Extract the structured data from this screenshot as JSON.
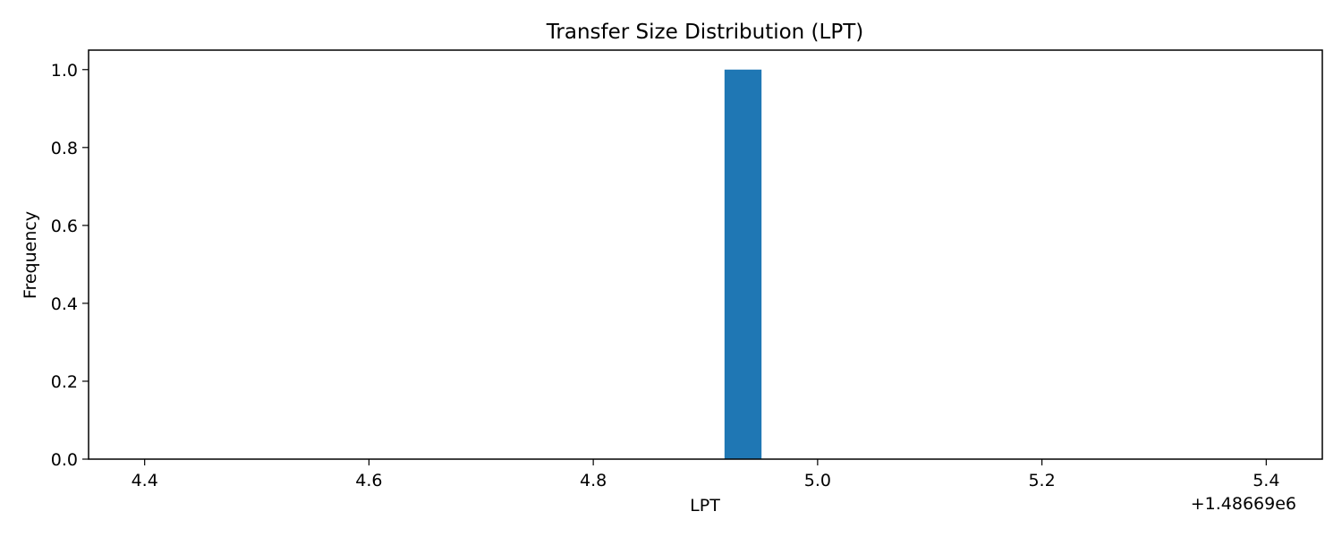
{
  "chart_data": {
    "type": "bar",
    "title": "Transfer Size Distribution (LPT)",
    "xlabel": "LPT",
    "ylabel": "Frequency",
    "x_offset_label": "+1.48669e6",
    "xlim": [
      4.35,
      5.45
    ],
    "ylim": [
      0.0,
      1.05
    ],
    "xticks": [
      4.4,
      4.6,
      4.8,
      5.0,
      5.2,
      5.4
    ],
    "xtick_labels": [
      "4.4",
      "4.6",
      "4.8",
      "5.0",
      "5.2",
      "5.4"
    ],
    "yticks": [
      0.0,
      0.2,
      0.4,
      0.6,
      0.8,
      1.0
    ],
    "ytick_labels": [
      "0.0",
      "0.2",
      "0.4",
      "0.6",
      "0.8",
      "1.0"
    ],
    "bins": [
      {
        "x0": 4.917,
        "x1": 4.95,
        "count": 1
      }
    ],
    "grid": false,
    "color": "#1f77b4"
  }
}
